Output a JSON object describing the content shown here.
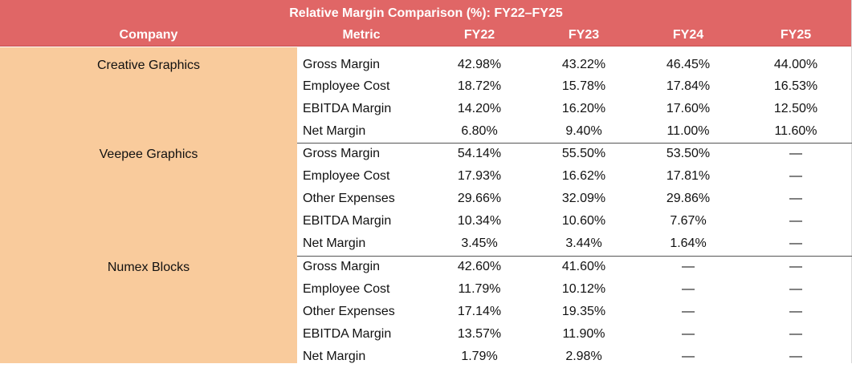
{
  "table": {
    "title": "Relative Margin Comparison (%): FY22–FY25",
    "headers": {
      "company": "Company",
      "metric": "Metric",
      "fy22": "FY22",
      "fy23": "FY23",
      "fy24": "FY24",
      "fy25": "FY25"
    },
    "header_color": "#e06666",
    "company_fill_color": "#f9cb9c",
    "groups": [
      {
        "company": "Creative Graphics",
        "rows": [
          {
            "metric": "Gross Margin",
            "fy22": "42.98%",
            "fy23": "43.22%",
            "fy24": "46.45%",
            "fy25": "44.00%"
          },
          {
            "metric": "Employee Cost",
            "fy22": "18.72%",
            "fy23": "15.78%",
            "fy24": "17.84%",
            "fy25": "16.53%"
          },
          {
            "metric": "EBITDA Margin",
            "fy22": "14.20%",
            "fy23": "16.20%",
            "fy24": "17.60%",
            "fy25": "12.50%"
          },
          {
            "metric": "Net Margin",
            "fy22": "6.80%",
            "fy23": "9.40%",
            "fy24": "11.00%",
            "fy25": "11.60%"
          }
        ]
      },
      {
        "company": "Veepee Graphics",
        "rows": [
          {
            "metric": "Gross Margin",
            "fy22": "54.14%",
            "fy23": "55.50%",
            "fy24": "53.50%",
            "fy25": "—"
          },
          {
            "metric": "Employee Cost",
            "fy22": "17.93%",
            "fy23": "16.62%",
            "fy24": "17.81%",
            "fy25": "—"
          },
          {
            "metric": "Other Expenses",
            "fy22": "29.66%",
            "fy23": "32.09%",
            "fy24": "29.86%",
            "fy25": "—"
          },
          {
            "metric": "EBITDA Margin",
            "fy22": "10.34%",
            "fy23": "10.60%",
            "fy24": "7.67%",
            "fy25": "—"
          },
          {
            "metric": "Net Margin",
            "fy22": "3.45%",
            "fy23": "3.44%",
            "fy24": "1.64%",
            "fy25": "—"
          }
        ]
      },
      {
        "company": "Numex Blocks",
        "rows": [
          {
            "metric": "Gross Margin",
            "fy22": "42.60%",
            "fy23": "41.60%",
            "fy24": "—",
            "fy25": "—"
          },
          {
            "metric": "Employee Cost",
            "fy22": "11.79%",
            "fy23": "10.12%",
            "fy24": "—",
            "fy25": "—"
          },
          {
            "metric": "Other Expenses",
            "fy22": "17.14%",
            "fy23": "19.35%",
            "fy24": "—",
            "fy25": "—"
          },
          {
            "metric": "EBITDA Margin",
            "fy22": "13.57%",
            "fy23": "11.90%",
            "fy24": "—",
            "fy25": "—"
          },
          {
            "metric": "Net Margin",
            "fy22": "1.79%",
            "fy23": "2.98%",
            "fy24": "—",
            "fy25": "—"
          }
        ]
      }
    ]
  }
}
